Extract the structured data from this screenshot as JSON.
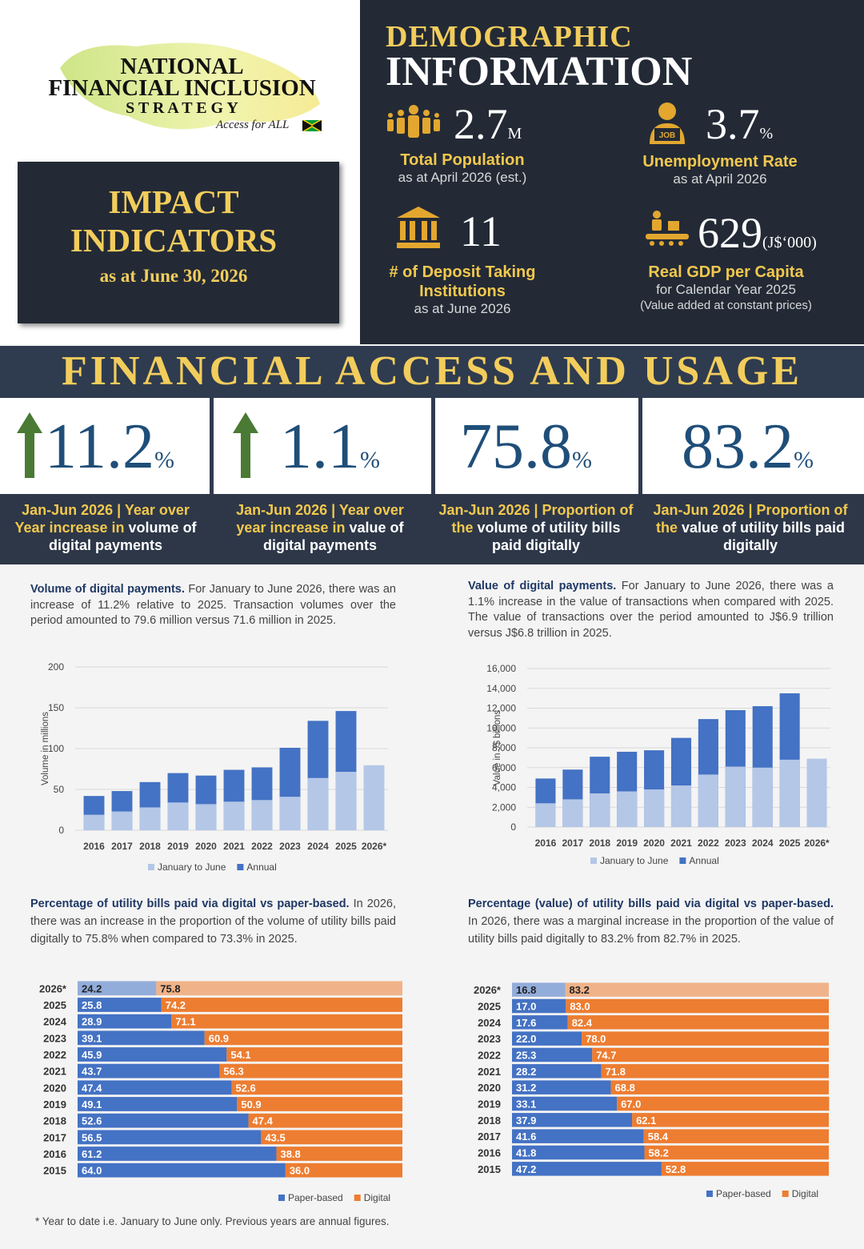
{
  "header": {
    "logo": {
      "line1": "NATIONAL",
      "line2": "FINANCIAL INCLUSION",
      "line3": "S T R A T E G Y",
      "tagline": "Access for ALL"
    },
    "impact": {
      "title": "IMPACT INDICATORS",
      "subtitle": "as at June 30, 2026"
    }
  },
  "demographics": {
    "title_top": "DEMOGRAPHIC",
    "title": "INFORMATION",
    "items": [
      {
        "value": "2.7",
        "unit": "M",
        "label": "Total Population",
        "note": "as at April 2026 (est.)"
      },
      {
        "value": "3.7",
        "unit": "%",
        "label": "Unemployment Rate",
        "note": "as at April 2026"
      },
      {
        "value": "11",
        "label": "# of Deposit Taking Institutions",
        "note": "as at June 2026"
      },
      {
        "value": "629",
        "unit": "(J$‘000)",
        "label": "Real GDP per Capita",
        "note": "for Calendar Year 2025",
        "note2": "(Value added at constant prices)"
      }
    ]
  },
  "access": {
    "title": "FINANCIAL ACCESS AND USAGE",
    "cards": [
      {
        "value": "11.2",
        "unit": "%",
        "lead": "Jan-Jun 2026 | Year over Year increase in",
        "rest": "volume of digital payments"
      },
      {
        "value": "1.1",
        "unit": "%",
        "lead": "Jan-Jun 2026  | Year over year increase in",
        "rest": "value of digital payments"
      },
      {
        "value": "75.8",
        "unit": "%",
        "lead": "Jan-Jun 2026 | Proportion of the",
        "rest": "volume of utility bills paid digitally"
      },
      {
        "value": "83.2",
        "unit": "%",
        "lead": "Jan-Jun 2026 | Proportion of the",
        "rest": "value of utility bills paid digitally"
      }
    ]
  },
  "sections": [
    {
      "heading": "Volume of digital payments.",
      "body": "For January to June 2026, there was an increase of 11.2% relative to 2025. Transaction volumes over the period amounted to 79.6 million versus 71.6 million in 2025."
    },
    {
      "heading": "Value of digital payments.",
      "body": "For January to June 2026, there was a 1.1% increase in the value of transactions when compared with 2025. The value of transactions over the period amounted to J$6.9 trillion versus J$6.8 trillion in 2025."
    },
    {
      "heading": "Percentage of utility bills paid via digital vs paper-based.",
      "body": "In 2026, there was an increase in the proportion of the volume of utility bills paid digitally to 75.8% when compared to 73.3% in 2025."
    },
    {
      "heading": "Percentage (value) of utility bills paid via digital vs paper-based.",
      "body": "In 2026, there was a marginal increase in the proportion of the value of utility bills paid digitally to 83.2% from 82.7% in 2025."
    }
  ],
  "chart_data": [
    {
      "type": "bar",
      "ylabel": "Volume in millions",
      "categories": [
        "2016",
        "2017",
        "2018",
        "2019",
        "2020",
        "2021",
        "2022",
        "2023",
        "2024",
        "2025",
        "2026*"
      ],
      "series": [
        {
          "name": "January to June",
          "color": "#b4c7e7",
          "values": [
            19,
            23,
            28,
            34,
            32,
            35,
            37,
            41,
            64,
            71.6,
            79.6
          ]
        },
        {
          "name": "Annual",
          "color": "#4472c4",
          "values": [
            42,
            48,
            59,
            70,
            67,
            74,
            77,
            101,
            134,
            146,
            null
          ]
        }
      ],
      "ylim": [
        0,
        200
      ],
      "yticks": [
        0,
        50,
        100,
        150,
        200
      ],
      "grid": true,
      "legend": "bottom"
    },
    {
      "type": "bar",
      "ylabel": "Value in J$ billions",
      "categories": [
        "2016",
        "2017",
        "2018",
        "2019",
        "2020",
        "2021",
        "2022",
        "2023",
        "2024",
        "2025",
        "2026*"
      ],
      "series": [
        {
          "name": "January to June",
          "color": "#b4c7e7",
          "values": [
            2400,
            2800,
            3400,
            3600,
            3800,
            4200,
            5300,
            6100,
            6000,
            6800,
            6900
          ]
        },
        {
          "name": "Annual",
          "color": "#4472c4",
          "values": [
            4900,
            5800,
            7100,
            7600,
            7750,
            9000,
            10900,
            11800,
            12200,
            13500,
            null
          ]
        }
      ],
      "ylim": [
        0,
        16000
      ],
      "yticks": [
        0,
        {
          "value": 2000,
          "label": "2,000"
        },
        {
          "value": 4000,
          "label": "4,000"
        },
        {
          "value": 6000,
          "label": "6,000"
        },
        {
          "value": 8000,
          "label": "8,000"
        },
        {
          "value": 10000,
          "label": "10,000"
        },
        {
          "value": 12000,
          "label": "12,000"
        },
        {
          "value": 14000,
          "label": "14,000"
        },
        {
          "value": 16000,
          "label": "16,000"
        }
      ],
      "grid": true,
      "legend": "bottom"
    },
    {
      "type": "barh",
      "stacked": true,
      "categories": [
        "2026*",
        "2025",
        "2024",
        "2023",
        "2022",
        "2021",
        "2020",
        "2019",
        "2018",
        "2017",
        "2016",
        "2015"
      ],
      "series": [
        {
          "name": "Paper-based",
          "color": "#4472c4",
          "values": [
            24.2,
            25.8,
            28.9,
            39.1,
            45.9,
            43.7,
            47.4,
            49.1,
            52.6,
            56.5,
            61.2,
            64.0
          ],
          "value_labels": [
            "24.2",
            "25.8",
            "28.9",
            "39.1",
            "45.9",
            "43.7",
            "47.4",
            "49.1",
            "52.6",
            "56.5",
            "61.2",
            "64.0"
          ]
        },
        {
          "name": "Digital",
          "color": "#ed7d31",
          "values": [
            75.8,
            74.2,
            71.1,
            60.9,
            54.1,
            56.3,
            52.6,
            50.9,
            47.4,
            43.5,
            38.8,
            36.0
          ],
          "value_labels": [
            "75.8",
            "74.2",
            "71.1",
            "60.9",
            "54.1",
            "56.3",
            "52.6",
            "50.9",
            "47.4",
            "43.5",
            "38.8",
            "36.0"
          ]
        }
      ],
      "xlim": [
        0,
        100
      ],
      "legend": "bottom"
    },
    {
      "type": "barh",
      "stacked": true,
      "categories": [
        "2026*",
        "2025",
        "2024",
        "2023",
        "2022",
        "2021",
        "2020",
        "2019",
        "2018",
        "2017",
        "2016",
        "2015"
      ],
      "series": [
        {
          "name": "Paper-based",
          "color": "#4472c4",
          "values": [
            16.8,
            17.0,
            17.6,
            22.0,
            25.3,
            28.2,
            31.2,
            33.1,
            37.9,
            41.6,
            41.8,
            47.2
          ],
          "value_labels": [
            "16.8",
            "17.0",
            "17.6",
            "22.0",
            "25.3",
            "28.2",
            "31.2",
            "33.1",
            "37.9",
            "41.6",
            "41.8",
            "47.2"
          ]
        },
        {
          "name": "Digital",
          "color": "#ed7d31",
          "values": [
            83.2,
            83.0,
            82.4,
            78.0,
            74.7,
            71.8,
            68.8,
            67.0,
            62.1,
            58.4,
            58.2,
            52.8
          ],
          "value_labels": [
            "83.2",
            "83.0",
            "82.4",
            "78.0",
            "74.7",
            "71.8",
            "68.8",
            "67.0",
            "62.1",
            "58.4",
            "58.2",
            "52.8"
          ]
        }
      ],
      "xlim": [
        0,
        100
      ],
      "legend": "bottom"
    }
  ],
  "footnote": "* Year to date i.e. January to June only. Previous years are annual figures."
}
